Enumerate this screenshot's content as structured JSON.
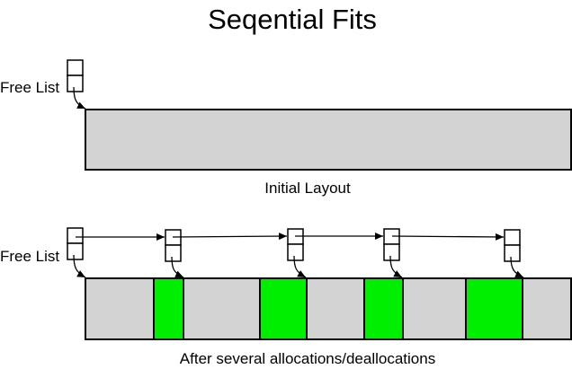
{
  "title": "Seqential Fits",
  "initial": {
    "free_list_label": "Free List",
    "caption": "Initial Layout",
    "block_color": "#d3d3d3"
  },
  "after": {
    "free_list_label": "Free List",
    "caption": "After several allocations/deallocations",
    "free_color": "#d3d3d3",
    "allocated_color": "#00ee00",
    "segments": [
      "free",
      "allocated",
      "free",
      "allocated",
      "free",
      "allocated",
      "free",
      "allocated",
      "free"
    ],
    "free_list_nodes": 5
  }
}
